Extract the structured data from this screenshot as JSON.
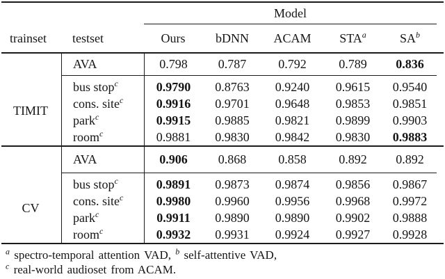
{
  "page": {
    "background": "#ffffff",
    "text_color": "#151515",
    "rule_color": "#1a1a1a"
  },
  "table": {
    "model_group_header": "Model",
    "header": {
      "trainset": "trainset",
      "testset": "testset",
      "models": [
        {
          "name": "Ours",
          "sup": ""
        },
        {
          "name": "bDNN",
          "sup": ""
        },
        {
          "name": "ACAM",
          "sup": ""
        },
        {
          "name": "STA",
          "sup": "a"
        },
        {
          "name": "SA",
          "sup": "b"
        }
      ]
    },
    "sections": [
      {
        "trainset": "TIMIT",
        "ava": {
          "label": "AVA",
          "sup": "",
          "values": [
            "0.798",
            "0.787",
            "0.792",
            "0.789",
            "0.836"
          ],
          "bold": [
            4
          ]
        },
        "rows": [
          {
            "label": "bus stop",
            "sup": "c",
            "values": [
              "0.9790",
              "0.8763",
              "0.9240",
              "0.9615",
              "0.9540"
            ],
            "bold": [
              0
            ]
          },
          {
            "label": "cons. site",
            "sup": "c",
            "values": [
              "0.9916",
              "0.9701",
              "0.9648",
              "0.9853",
              "0.9851"
            ],
            "bold": [
              0
            ]
          },
          {
            "label": "park",
            "sup": "c",
            "values": [
              "0.9915",
              "0.9885",
              "0.9821",
              "0.9899",
              "0.9903"
            ],
            "bold": [
              0
            ]
          },
          {
            "label": "room",
            "sup": "c",
            "values": [
              "0.9881",
              "0.9830",
              "0.9842",
              "0.9830",
              "0.9883"
            ],
            "bold": [
              4
            ]
          }
        ]
      },
      {
        "trainset": "CV",
        "ava": {
          "label": "AVA",
          "sup": "",
          "values": [
            "0.906",
            "0.868",
            "0.858",
            "0.892",
            "0.892"
          ],
          "bold": [
            0
          ]
        },
        "rows": [
          {
            "label": "bus stop",
            "sup": "c",
            "values": [
              "0.9891",
              "0.9873",
              "0.9874",
              "0.9856",
              "0.9867"
            ],
            "bold": [
              0
            ]
          },
          {
            "label": "cons. site",
            "sup": "c",
            "values": [
              "0.9980",
              "0.9960",
              "0.9956",
              "0.9968",
              "0.9972"
            ],
            "bold": [
              0
            ]
          },
          {
            "label": "park",
            "sup": "c",
            "values": [
              "0.9911",
              "0.9890",
              "0.9890",
              "0.9902",
              "0.9888"
            ],
            "bold": [
              0
            ]
          },
          {
            "label": "room",
            "sup": "c",
            "values": [
              "0.9932",
              "0.9931",
              "0.9924",
              "0.9927",
              "0.9928"
            ],
            "bold": [
              0
            ]
          }
        ]
      }
    ],
    "footnotes": [
      {
        "segments": [
          {
            "sup": "a",
            "text": "spectro-temporal attention VAD,"
          },
          {
            "sup": "b",
            "text": "self-attentive VAD,"
          }
        ]
      },
      {
        "segments": [
          {
            "sup": "c",
            "text": "real-world audioset from ACAM."
          }
        ]
      }
    ]
  }
}
